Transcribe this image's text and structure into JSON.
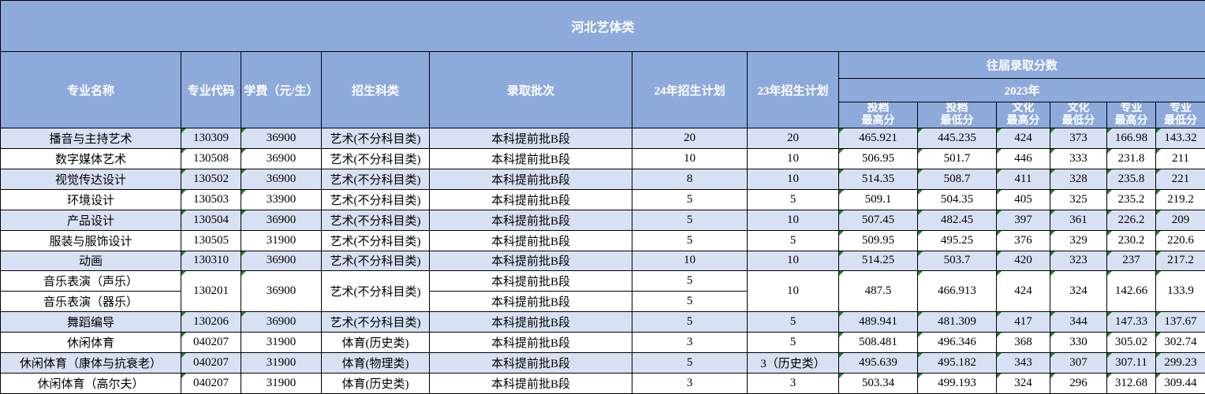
{
  "title": "河北艺体类",
  "colors": {
    "header_bg": "#8eaadb",
    "row_shade_bg": "#d8e1f3",
    "row_plain_bg": "#ffffff",
    "border": "#000000",
    "header_text": "#ffffff",
    "cell_text": "#000000",
    "error_indicator_triangle": "#267f26"
  },
  "header": {
    "major_name": "专业名称",
    "major_code": "专业代码",
    "tuition": "学费（元/生）",
    "subject_category": "招生科类",
    "admission_batch": "录取批次",
    "plan_24": "24年招生计划",
    "plan_23": "23年招生计划",
    "past_scores": "往届录取分数",
    "year_2023": "2023年",
    "score_columns": [
      "投档\n最高分",
      "投档\n最低分",
      "文化\n最高分",
      "文化\n最低分",
      "专业\n最高分",
      "专业\n最低分"
    ]
  },
  "rows": [
    {
      "shade": true,
      "cells": [
        {
          "t": "播音与主持艺术"
        },
        {
          "t": "130309",
          "tri": true
        },
        {
          "t": "36900",
          "tri": true
        },
        {
          "t": "艺术(不分科目类)"
        },
        {
          "t": "本科提前批B段"
        },
        {
          "t": "20"
        },
        {
          "t": "20"
        },
        {
          "t": "465.921",
          "tri": true
        },
        {
          "t": "445.235",
          "tri": true
        },
        {
          "t": "424",
          "tri": true
        },
        {
          "t": "373",
          "tri": true
        },
        {
          "t": "166.98",
          "tri": true
        },
        {
          "t": "143.32",
          "tri": true
        }
      ]
    },
    {
      "shade": false,
      "cells": [
        {
          "t": "数字媒体艺术"
        },
        {
          "t": "130508",
          "tri": true
        },
        {
          "t": "36900",
          "tri": true
        },
        {
          "t": "艺术(不分科目类)"
        },
        {
          "t": "本科提前批B段"
        },
        {
          "t": "10"
        },
        {
          "t": "10"
        },
        {
          "t": "506.95",
          "tri": true
        },
        {
          "t": "501.7",
          "tri": true
        },
        {
          "t": "446",
          "tri": true
        },
        {
          "t": "333",
          "tri": true
        },
        {
          "t": "231.8",
          "tri": true
        },
        {
          "t": "211",
          "tri": true
        }
      ]
    },
    {
      "shade": true,
      "cells": [
        {
          "t": "视觉传达设计"
        },
        {
          "t": "130502",
          "tri": true
        },
        {
          "t": "36900",
          "tri": true
        },
        {
          "t": "艺术(不分科目类)"
        },
        {
          "t": "本科提前批B段"
        },
        {
          "t": "8"
        },
        {
          "t": "10"
        },
        {
          "t": "514.35",
          "tri": true
        },
        {
          "t": "508.7",
          "tri": true
        },
        {
          "t": "411",
          "tri": true
        },
        {
          "t": "328",
          "tri": true
        },
        {
          "t": "235.8",
          "tri": true
        },
        {
          "t": "221",
          "tri": true
        }
      ]
    },
    {
      "shade": false,
      "cells": [
        {
          "t": "环境设计"
        },
        {
          "t": "130503",
          "tri": true
        },
        {
          "t": "33900",
          "tri": true
        },
        {
          "t": "艺术(不分科目类)"
        },
        {
          "t": "本科提前批B段"
        },
        {
          "t": "5"
        },
        {
          "t": "5"
        },
        {
          "t": "509.1",
          "tri": true
        },
        {
          "t": "504.35",
          "tri": true
        },
        {
          "t": "405",
          "tri": true
        },
        {
          "t": "325",
          "tri": true
        },
        {
          "t": "235.2",
          "tri": true
        },
        {
          "t": "219.2",
          "tri": true
        }
      ]
    },
    {
      "shade": true,
      "cells": [
        {
          "t": "产品设计"
        },
        {
          "t": "130504",
          "tri": true
        },
        {
          "t": "36900",
          "tri": true
        },
        {
          "t": "艺术(不分科目类)"
        },
        {
          "t": "本科提前批B段"
        },
        {
          "t": "5"
        },
        {
          "t": "10"
        },
        {
          "t": "507.45",
          "tri": true
        },
        {
          "t": "482.45",
          "tri": true
        },
        {
          "t": "397",
          "tri": true
        },
        {
          "t": "361",
          "tri": true
        },
        {
          "t": "226.2",
          "tri": true
        },
        {
          "t": "209",
          "tri": true
        }
      ]
    },
    {
      "shade": false,
      "cells": [
        {
          "t": "服装与服饰设计"
        },
        {
          "t": "130505"
        },
        {
          "t": "31900"
        },
        {
          "t": "艺术(不分科目类)"
        },
        {
          "t": "本科提前批B段"
        },
        {
          "t": "5"
        },
        {
          "t": "5"
        },
        {
          "t": "509.95",
          "tri": true
        },
        {
          "t": "495.25",
          "tri": true
        },
        {
          "t": "376",
          "tri": true
        },
        {
          "t": "329",
          "tri": true
        },
        {
          "t": "230.2",
          "tri": true
        },
        {
          "t": "220.6",
          "tri": true
        }
      ]
    },
    {
      "shade": true,
      "cells": [
        {
          "t": "动画"
        },
        {
          "t": "130310",
          "tri": true
        },
        {
          "t": "36900",
          "tri": true
        },
        {
          "t": "艺术(不分科目类)"
        },
        {
          "t": "本科提前批B段"
        },
        {
          "t": "10"
        },
        {
          "t": "10"
        },
        {
          "t": "514.25",
          "tri": true
        },
        {
          "t": "503.7",
          "tri": true
        },
        {
          "t": "420",
          "tri": true
        },
        {
          "t": "323",
          "tri": true
        },
        {
          "t": "237",
          "tri": true
        },
        {
          "t": "217.2",
          "tri": true
        }
      ]
    },
    {
      "shade": false,
      "cells": [
        {
          "t": "音乐表演（声乐）"
        },
        {
          "t": "130201",
          "tri": true,
          "rs": 2
        },
        {
          "t": "36900",
          "tri": true,
          "rs": 2
        },
        {
          "t": "艺术(不分科目类)",
          "rs": 2
        },
        {
          "t": "本科提前批B段"
        },
        {
          "t": "5"
        },
        {
          "t": "10",
          "rs": 2
        },
        {
          "t": "487.5",
          "tri": true,
          "rs": 2
        },
        {
          "t": "466.913",
          "tri": true,
          "rs": 2
        },
        {
          "t": "424",
          "tri": true,
          "rs": 2
        },
        {
          "t": "324",
          "tri": true,
          "rs": 2
        },
        {
          "t": "142.66",
          "tri": true,
          "rs": 2
        },
        {
          "t": "133.9",
          "tri": true,
          "rs": 2
        }
      ]
    },
    {
      "shade": false,
      "cells": [
        {
          "t": "音乐表演（器乐）"
        },
        {
          "t": "本科提前批B段"
        },
        {
          "t": "5"
        }
      ]
    },
    {
      "shade": true,
      "cells": [
        {
          "t": "舞蹈编导"
        },
        {
          "t": "130206",
          "tri": true
        },
        {
          "t": "36900",
          "tri": true
        },
        {
          "t": "艺术(不分科目类)"
        },
        {
          "t": "本科提前批B段"
        },
        {
          "t": "5"
        },
        {
          "t": "5"
        },
        {
          "t": "489.941",
          "tri": true
        },
        {
          "t": "481.309",
          "tri": true
        },
        {
          "t": "417",
          "tri": true
        },
        {
          "t": "344",
          "tri": true
        },
        {
          "t": "147.33",
          "tri": true
        },
        {
          "t": "137.67",
          "tri": true
        }
      ]
    },
    {
      "shade": false,
      "cells": [
        {
          "t": "休闲体育"
        },
        {
          "t": "040207",
          "tri": true
        },
        {
          "t": "31900"
        },
        {
          "t": "体育(历史类)"
        },
        {
          "t": "本科提前批B段"
        },
        {
          "t": "3"
        },
        {
          "t": "5"
        },
        {
          "t": "508.481",
          "tri": true
        },
        {
          "t": "496.346",
          "tri": true
        },
        {
          "t": "368",
          "tri": true
        },
        {
          "t": "330",
          "tri": true
        },
        {
          "t": "305.02",
          "tri": true
        },
        {
          "t": "302.74",
          "tri": true
        }
      ]
    },
    {
      "shade": true,
      "cells": [
        {
          "t": "休闲体育（康体与抗衰老）"
        },
        {
          "t": "040207",
          "tri": true
        },
        {
          "t": "31900"
        },
        {
          "t": "体育(物理类)"
        },
        {
          "t": "本科提前批B段"
        },
        {
          "t": "5"
        },
        {
          "t": "3（历史类）"
        },
        {
          "t": "495.639",
          "tri": true
        },
        {
          "t": "495.182",
          "tri": true
        },
        {
          "t": "343",
          "tri": true
        },
        {
          "t": "307",
          "tri": true
        },
        {
          "t": "307.11",
          "tri": true
        },
        {
          "t": "299.23",
          "tri": true
        }
      ]
    },
    {
      "shade": false,
      "cells": [
        {
          "t": "休闲体育（高尔夫）"
        },
        {
          "t": "040207",
          "tri": true
        },
        {
          "t": "31900"
        },
        {
          "t": "体育(历史类)"
        },
        {
          "t": "本科提前批B段"
        },
        {
          "t": "3"
        },
        {
          "t": "3"
        },
        {
          "t": "503.34",
          "tri": true
        },
        {
          "t": "499.193",
          "tri": true
        },
        {
          "t": "324",
          "tri": true
        },
        {
          "t": "296",
          "tri": true
        },
        {
          "t": "312.68",
          "tri": true
        },
        {
          "t": "309.44",
          "tri": true
        }
      ]
    }
  ]
}
